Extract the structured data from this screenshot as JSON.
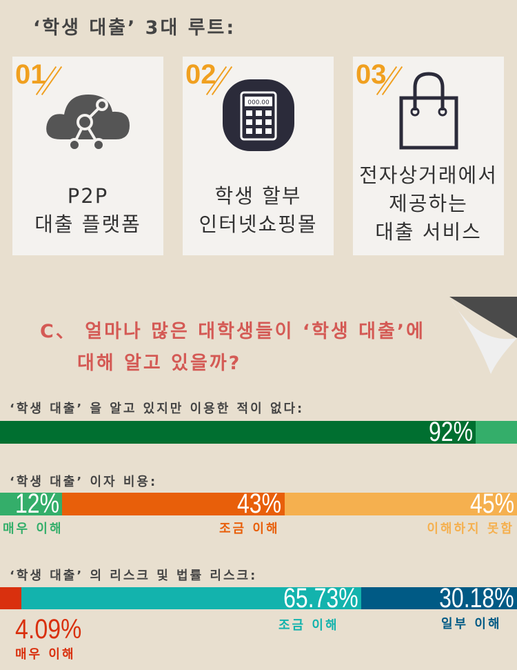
{
  "title": "‘학생 대출’ 3대 루트:",
  "routes": [
    {
      "number": "01",
      "icon": "cloud-network-icon",
      "lines": [
        "P2P",
        "대출 플랫폼"
      ]
    },
    {
      "number": "02",
      "icon": "calculator-icon",
      "display": "000.00",
      "lines": [
        "학생 할부",
        "인터넷쇼핑몰"
      ]
    },
    {
      "number": "03",
      "icon": "shopping-bag-icon",
      "lines": [
        "전자상거래에서",
        "제공하는",
        "대출 서비스"
      ]
    }
  ],
  "question": {
    "marker": "C、",
    "line1": "얼마나 많은 대학생들이 ‘학생 대출’에",
    "line2": "대해 알고 있을까?"
  },
  "stats": [
    {
      "label": "‘학생 대출’ 을 알고 있지만 이용한 적이 없다:",
      "segments": [
        {
          "value": 92,
          "text": "92%",
          "color": "#006f30"
        },
        {
          "value": 8,
          "text": "",
          "color": "#34ae6a"
        }
      ]
    },
    {
      "label": "‘학생 대출’ 이자 비용:",
      "segments": [
        {
          "value": 12,
          "text": "12%",
          "color": "#34ae6a",
          "caption": "매우 이해"
        },
        {
          "value": 43,
          "text": "43%",
          "color": "#e85f0a",
          "caption": "조금 이해"
        },
        {
          "value": 45,
          "text": "45%",
          "color": "#f5b04f",
          "caption": "이해하지 못함"
        }
      ]
    },
    {
      "label": "‘학생 대출’ 의 리스크 및 법률 리스크:",
      "segments": [
        {
          "value": 4.09,
          "text": "4.09%",
          "color": "#d9300e",
          "caption": "매우 이해"
        },
        {
          "value": 65.73,
          "text": "65.73%",
          "color": "#13b3ad",
          "caption": "조금 이해"
        },
        {
          "value": 30.18,
          "text": "30.18%",
          "color": "#005a85",
          "caption": "일부 이해"
        }
      ]
    }
  ]
}
